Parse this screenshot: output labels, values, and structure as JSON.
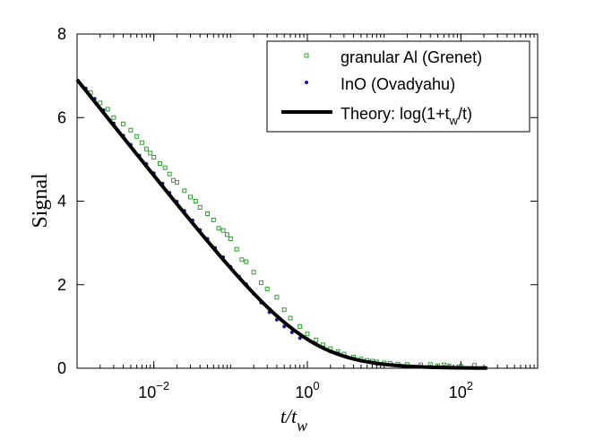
{
  "chart_data": {
    "type": "scatter",
    "title": "",
    "xlabel_main": "t/t",
    "xlabel_sub": "w",
    "ylabel": "Signal",
    "x_scale": "log",
    "xlim": [
      0.001,
      1000
    ],
    "ylim": [
      0,
      8
    ],
    "x_ticks": [
      {
        "value": 0.01,
        "base": "10",
        "exp": "−2"
      },
      {
        "value": 1,
        "base": "10",
        "exp": "0"
      },
      {
        "value": 100,
        "base": "10",
        "exp": "2"
      }
    ],
    "y_ticks": [
      {
        "value": 0,
        "label": "0"
      },
      {
        "value": 2,
        "label": "2"
      },
      {
        "value": 4,
        "label": "4"
      },
      {
        "value": 6,
        "label": "6"
      },
      {
        "value": 8,
        "label": "8"
      }
    ],
    "grid": false,
    "legend_position": "top-right",
    "legend": [
      {
        "label": "granular Al (Grenet)",
        "marker": "square",
        "color": "#2ca02c"
      },
      {
        "label": "InO (Ovadyahu)",
        "marker": "dot",
        "color": "#1a1a8c"
      },
      {
        "label_prefix": "Theory: log(1+t",
        "label_sub": "w",
        "label_suffix": "/t)",
        "marker": "line",
        "color": "#000000"
      }
    ],
    "series": [
      {
        "name": "granular Al (Grenet)",
        "marker": "square",
        "color": "#2ca02c",
        "x": [
          0.0015,
          0.002,
          0.0025,
          0.003,
          0.004,
          0.005,
          0.006,
          0.007,
          0.008,
          0.009,
          0.01,
          0.012,
          0.014,
          0.016,
          0.018,
          0.02,
          0.025,
          0.03,
          0.035,
          0.04,
          0.05,
          0.06,
          0.07,
          0.08,
          0.09,
          0.1,
          0.12,
          0.14,
          0.16,
          0.2,
          0.25,
          0.3,
          0.4,
          0.5,
          0.6,
          0.8,
          1,
          1.3,
          1.6,
          2,
          2.5,
          3,
          4,
          5,
          6,
          7,
          8,
          10,
          12,
          15,
          20,
          30,
          40,
          50,
          60,
          70,
          100,
          150
        ],
        "y": [
          6.6,
          6.35,
          6.2,
          6.0,
          5.85,
          5.7,
          5.55,
          5.4,
          5.25,
          5.15,
          5.05,
          4.9,
          4.8,
          4.65,
          4.5,
          4.45,
          4.25,
          4.1,
          4.0,
          3.85,
          3.7,
          3.55,
          3.35,
          3.3,
          3.2,
          3.1,
          2.85,
          2.6,
          2.55,
          2.3,
          2.05,
          1.9,
          1.7,
          1.4,
          1.2,
          1.0,
          0.82,
          0.68,
          0.56,
          0.47,
          0.4,
          0.34,
          0.27,
          0.22,
          0.19,
          0.17,
          0.15,
          0.13,
          0.12,
          0.1,
          0.09,
          0.08,
          0.09,
          0.06,
          0.08,
          0.06,
          0.05,
          0.07
        ]
      },
      {
        "name": "InO (Ovadyahu)",
        "marker": "dot",
        "color": "#1a1a8c",
        "x": [
          0.0013,
          0.0017,
          0.0022,
          0.003,
          0.004,
          0.005,
          0.0065,
          0.008,
          0.01,
          0.013,
          0.016,
          0.02,
          0.025,
          0.032,
          0.04,
          0.05,
          0.063,
          0.08,
          0.1,
          0.13,
          0.16,
          0.2,
          0.25,
          0.32,
          0.4,
          0.5,
          0.63,
          0.8,
          1,
          1.3,
          1.6,
          2,
          2.5,
          3.2,
          4,
          5,
          6.3,
          8,
          10,
          13,
          16,
          20
        ],
        "y": [
          6.7,
          6.45,
          6.18,
          5.86,
          5.57,
          5.35,
          5.09,
          4.89,
          4.67,
          4.42,
          4.2,
          3.99,
          3.77,
          3.54,
          3.31,
          3.1,
          2.88,
          2.66,
          2.43,
          2.19,
          2.01,
          1.78,
          1.57,
          1.34,
          1.16,
          1.0,
          0.86,
          0.72,
          0.7,
          0.58,
          0.5,
          0.4,
          0.36,
          0.28,
          0.23,
          0.18,
          0.15,
          0.11,
          0.1,
          0.08,
          0.07,
          0.05
        ]
      }
    ],
    "theory_line": {
      "name": "Theory: log(1+tw/t)",
      "x_min": 0.001,
      "x_max": 220
    }
  }
}
